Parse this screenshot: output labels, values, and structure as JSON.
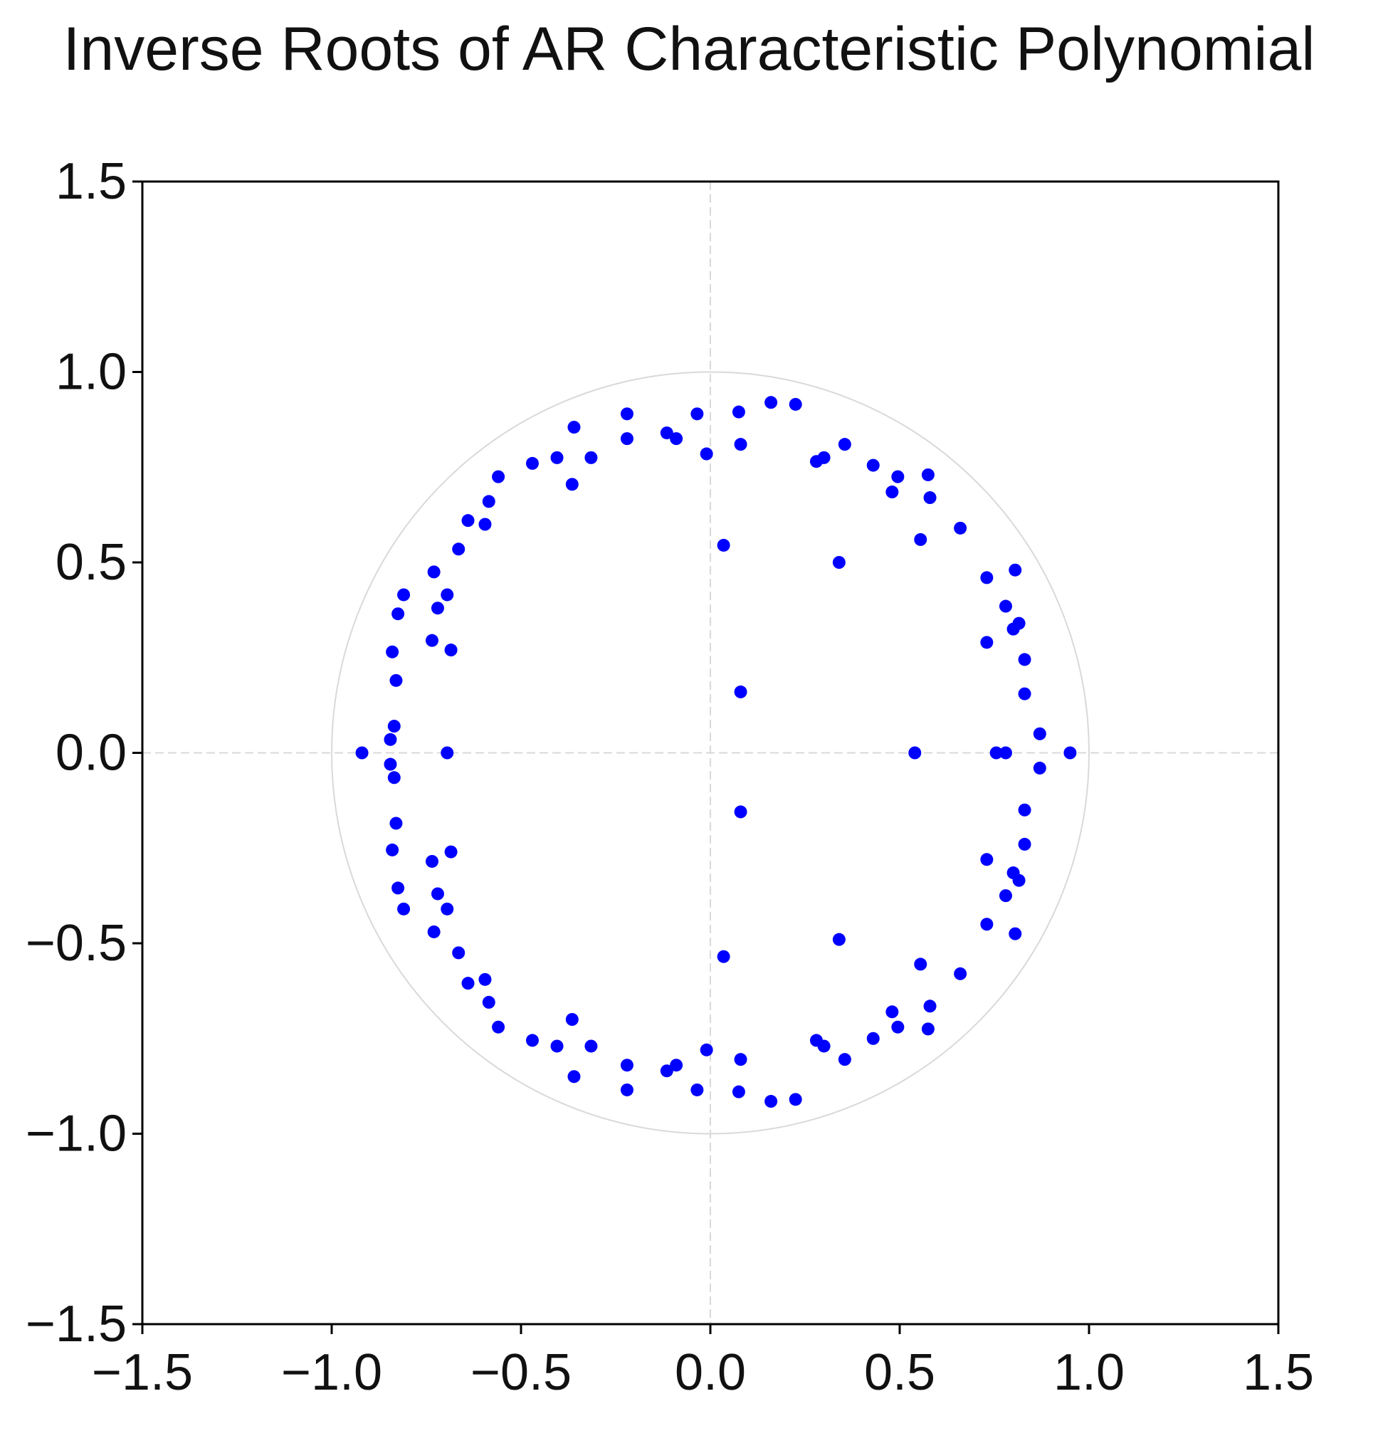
{
  "chart_data": {
    "type": "scatter",
    "title": "Inverse Roots of AR Characteristic Polynomial",
    "xlabel": "",
    "ylabel": "",
    "xlim": [
      -1.5,
      1.5
    ],
    "ylim": [
      -1.5,
      1.5
    ],
    "x_ticks": [
      -1.5,
      -1.0,
      -0.5,
      0.0,
      0.5,
      1.0,
      1.5
    ],
    "y_ticks": [
      1.5,
      1.0,
      0.5,
      0.0,
      -0.5,
      -1.0,
      -1.5
    ],
    "x_tick_labels": [
      "−1.5",
      "−1.0",
      "−0.5",
      "0.0",
      "0.5",
      "1.0",
      "1.5"
    ],
    "y_tick_labels": [
      "1.5",
      "1.0",
      "0.5",
      "0.0",
      "−0.5",
      "−1.0",
      "−1.5"
    ],
    "unit_circle": true,
    "zero_reference_lines": true,
    "grid": false,
    "point_color": "#0000ff",
    "reference_color": "#d9d9d9",
    "points": [
      [
        0.95,
        0.0
      ],
      [
        0.87,
        0.05
      ],
      [
        0.87,
        -0.04
      ],
      [
        0.78,
        0.0
      ],
      [
        0.755,
        0.0
      ],
      [
        0.54,
        0.0
      ],
      [
        0.83,
        0.155
      ],
      [
        0.83,
        -0.15
      ],
      [
        0.83,
        0.245
      ],
      [
        0.83,
        -0.24
      ],
      [
        0.815,
        0.34
      ],
      [
        0.815,
        -0.335
      ],
      [
        0.8,
        0.325
      ],
      [
        0.8,
        -0.315
      ],
      [
        0.78,
        0.385
      ],
      [
        0.78,
        -0.375
      ],
      [
        0.805,
        0.48
      ],
      [
        0.805,
        -0.475
      ],
      [
        0.73,
        0.46
      ],
      [
        0.73,
        -0.45
      ],
      [
        0.73,
        0.29
      ],
      [
        0.73,
        -0.28
      ],
      [
        0.66,
        0.59
      ],
      [
        0.66,
        -0.58
      ],
      [
        0.575,
        0.73
      ],
      [
        0.575,
        -0.725
      ],
      [
        0.58,
        0.67
      ],
      [
        0.58,
        -0.665
      ],
      [
        0.555,
        0.56
      ],
      [
        0.555,
        -0.555
      ],
      [
        0.495,
        0.725
      ],
      [
        0.495,
        -0.72
      ],
      [
        0.48,
        0.685
      ],
      [
        0.48,
        -0.68
      ],
      [
        0.43,
        0.755
      ],
      [
        0.43,
        -0.75
      ],
      [
        0.355,
        0.81
      ],
      [
        0.355,
        -0.805
      ],
      [
        0.3,
        0.775
      ],
      [
        0.3,
        -0.77
      ],
      [
        0.28,
        0.765
      ],
      [
        0.28,
        -0.755
      ],
      [
        0.34,
        0.5
      ],
      [
        0.34,
        -0.49
      ],
      [
        0.225,
        0.915
      ],
      [
        0.225,
        -0.91
      ],
      [
        0.16,
        0.92
      ],
      [
        0.16,
        -0.915
      ],
      [
        0.075,
        0.895
      ],
      [
        0.075,
        -0.89
      ],
      [
        0.08,
        0.81
      ],
      [
        0.08,
        -0.805
      ],
      [
        0.08,
        0.16
      ],
      [
        0.08,
        -0.155
      ],
      [
        0.035,
        0.545
      ],
      [
        0.035,
        -0.535
      ],
      [
        -0.01,
        0.785
      ],
      [
        -0.01,
        -0.78
      ],
      [
        -0.035,
        0.89
      ],
      [
        -0.035,
        -0.885
      ],
      [
        -0.09,
        0.825
      ],
      [
        -0.09,
        -0.82
      ],
      [
        -0.115,
        0.84
      ],
      [
        -0.115,
        -0.835
      ],
      [
        -0.22,
        0.89
      ],
      [
        -0.22,
        -0.885
      ],
      [
        -0.22,
        0.825
      ],
      [
        -0.22,
        -0.82
      ],
      [
        -0.315,
        0.775
      ],
      [
        -0.315,
        -0.77
      ],
      [
        -0.36,
        0.855
      ],
      [
        -0.36,
        -0.85
      ],
      [
        -0.365,
        0.705
      ],
      [
        -0.365,
        -0.7
      ],
      [
        -0.405,
        0.775
      ],
      [
        -0.405,
        -0.77
      ],
      [
        -0.47,
        0.76
      ],
      [
        -0.47,
        -0.755
      ],
      [
        -0.56,
        0.725
      ],
      [
        -0.56,
        -0.72
      ],
      [
        -0.585,
        0.66
      ],
      [
        -0.585,
        -0.655
      ],
      [
        -0.595,
        0.6
      ],
      [
        -0.595,
        -0.595
      ],
      [
        -0.64,
        0.61
      ],
      [
        -0.64,
        -0.605
      ],
      [
        -0.665,
        0.535
      ],
      [
        -0.665,
        -0.525
      ],
      [
        -0.73,
        0.475
      ],
      [
        -0.73,
        -0.47
      ],
      [
        -0.695,
        0.415
      ],
      [
        -0.695,
        -0.41
      ],
      [
        -0.72,
        0.38
      ],
      [
        -0.72,
        -0.37
      ],
      [
        -0.735,
        0.295
      ],
      [
        -0.735,
        -0.285
      ],
      [
        -0.685,
        0.27
      ],
      [
        -0.685,
        -0.26
      ],
      [
        -0.81,
        0.415
      ],
      [
        -0.81,
        -0.41
      ],
      [
        -0.825,
        0.365
      ],
      [
        -0.825,
        -0.355
      ],
      [
        -0.84,
        0.265
      ],
      [
        -0.84,
        -0.255
      ],
      [
        -0.83,
        0.19
      ],
      [
        -0.83,
        -0.185
      ],
      [
        -0.835,
        0.07
      ],
      [
        -0.835,
        -0.065
      ],
      [
        -0.845,
        0.035
      ],
      [
        -0.845,
        -0.03
      ],
      [
        -0.92,
        0.0
      ],
      [
        -0.695,
        0.0
      ]
    ]
  }
}
